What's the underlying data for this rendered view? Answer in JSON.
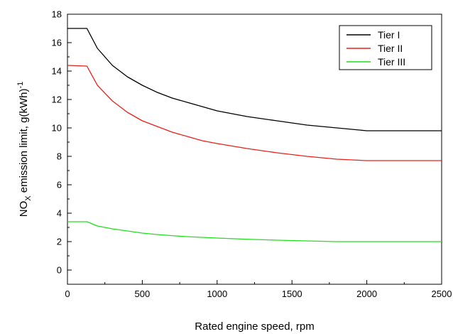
{
  "chart_data": {
    "type": "line",
    "xlabel": "Rated engine speed, rpm",
    "ylabel_main": "NO",
    "ylabel_sub": "X",
    "ylabel_rest": " emission limit, g(kWh)",
    "ylabel_sup": "-1",
    "xlim": [
      0,
      2500
    ],
    "ylim": [
      -1,
      18
    ],
    "x_ticks": [
      0,
      500,
      1000,
      1500,
      2000,
      2500
    ],
    "y_ticks": [
      0,
      2,
      4,
      6,
      8,
      10,
      12,
      14,
      16,
      18
    ],
    "grid": false,
    "legend_position": "top-right",
    "series": [
      {
        "name": "Tier I",
        "color": "#000000",
        "points": [
          [
            0,
            17.0
          ],
          [
            130,
            17.0
          ],
          [
            200,
            15.6
          ],
          [
            300,
            14.4
          ],
          [
            400,
            13.6
          ],
          [
            500,
            13.0
          ],
          [
            600,
            12.5
          ],
          [
            700,
            12.1
          ],
          [
            800,
            11.8
          ],
          [
            900,
            11.5
          ],
          [
            1000,
            11.2
          ],
          [
            1200,
            10.8
          ],
          [
            1400,
            10.5
          ],
          [
            1600,
            10.2
          ],
          [
            1800,
            10.0
          ],
          [
            2000,
            9.8
          ],
          [
            2100,
            9.8
          ],
          [
            2500,
            9.8
          ]
        ]
      },
      {
        "name": "Tier II",
        "color": "#e8211a",
        "points": [
          [
            0,
            14.4
          ],
          [
            130,
            14.35
          ],
          [
            200,
            13.0
          ],
          [
            300,
            11.9
          ],
          [
            400,
            11.1
          ],
          [
            500,
            10.5
          ],
          [
            600,
            10.1
          ],
          [
            700,
            9.7
          ],
          [
            800,
            9.4
          ],
          [
            900,
            9.1
          ],
          [
            1000,
            8.9
          ],
          [
            1200,
            8.55
          ],
          [
            1400,
            8.25
          ],
          [
            1600,
            8.0
          ],
          [
            1800,
            7.8
          ],
          [
            2000,
            7.7
          ],
          [
            2500,
            7.7
          ]
        ]
      },
      {
        "name": "Tier III",
        "color": "#22e01c",
        "points": [
          [
            0,
            3.4
          ],
          [
            130,
            3.4
          ],
          [
            200,
            3.1
          ],
          [
            300,
            2.9
          ],
          [
            400,
            2.75
          ],
          [
            500,
            2.6
          ],
          [
            600,
            2.5
          ],
          [
            700,
            2.42
          ],
          [
            800,
            2.35
          ],
          [
            1000,
            2.25
          ],
          [
            1200,
            2.17
          ],
          [
            1400,
            2.1
          ],
          [
            1600,
            2.05
          ],
          [
            1800,
            2.0
          ],
          [
            2000,
            2.0
          ],
          [
            2500,
            2.0
          ]
        ]
      }
    ]
  }
}
